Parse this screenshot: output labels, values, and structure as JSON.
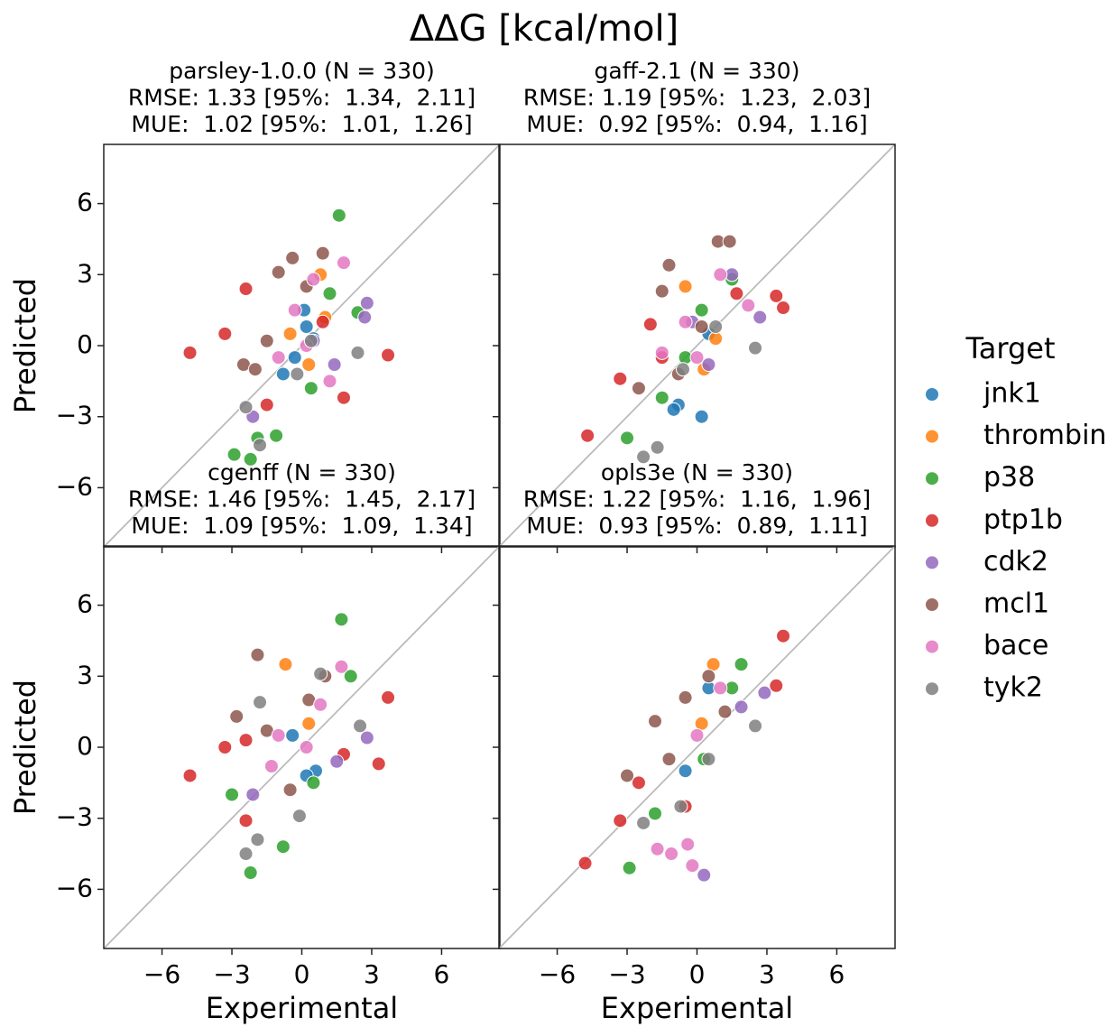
{
  "title": "ΔΔG [kcal/mol]",
  "legend_title": "Target",
  "chart_data": [
    {
      "type": "scatter",
      "title": [
        "parsley-1.0.0 (N = 330)",
        "RMSE: 1.33 [95%:  1.34,  2.11]",
        "MUE:  1.02 [95%:  1.01,  1.26]"
      ],
      "y_label": "Predicted",
      "xlim": [
        -8.5,
        8.5
      ],
      "ylim": [
        -8.5,
        8.5
      ],
      "xticks": [
        {
          "value": -6,
          "label": "−6"
        },
        {
          "value": -3,
          "label": "−3"
        },
        0,
        3,
        6
      ],
      "yticks": [
        {
          "value": -6,
          "label": "−6"
        },
        {
          "value": -3,
          "label": "−3"
        },
        0,
        3,
        6
      ],
      "series": [
        {
          "name": "jnk1",
          "color": "#1f77b4",
          "x": [
            0.1,
            -0.3,
            0.5,
            -0.8,
            0.2
          ],
          "values": [
            1.5,
            -0.5,
            0.3,
            -1.2,
            0.8
          ]
        },
        {
          "name": "thrombin",
          "color": "#ff7f0e",
          "x": [
            0.8,
            -0.5,
            0.3,
            1.0
          ],
          "values": [
            3.0,
            0.5,
            -0.8,
            1.2
          ]
        },
        {
          "name": "p38",
          "color": "#2ca02c",
          "x": [
            1.6,
            -2.9,
            -2.2,
            -1.9,
            1.2,
            0.4,
            -1.1,
            2.4
          ],
          "values": [
            5.5,
            -4.6,
            -4.8,
            -3.9,
            2.2,
            -1.8,
            -3.8,
            1.4
          ]
        },
        {
          "name": "ptp1b",
          "color": "#d62728",
          "x": [
            -4.8,
            -3.3,
            -2.4,
            3.7,
            1.8,
            -1.5,
            0.9
          ],
          "values": [
            -0.3,
            0.5,
            2.4,
            -0.4,
            -2.2,
            -2.5,
            1.0
          ]
        },
        {
          "name": "cdk2",
          "color": "#9467bd",
          "x": [
            2.8,
            2.7,
            -2.1,
            1.4,
            0.5
          ],
          "values": [
            1.8,
            1.2,
            -3.0,
            -0.8,
            0.2
          ]
        },
        {
          "name": "mcl1",
          "color": "#8c564b",
          "x": [
            -1.0,
            0.9,
            -0.4,
            -2.5,
            -1.5,
            0.2,
            -2.0
          ],
          "values": [
            3.1,
            3.9,
            3.7,
            -0.8,
            0.2,
            2.5,
            -1.0
          ]
        },
        {
          "name": "bace",
          "color": "#e377c2",
          "x": [
            1.8,
            0.5,
            -0.3,
            0.2,
            -1.0,
            1.2
          ],
          "values": [
            3.5,
            2.8,
            1.5,
            0.0,
            -0.5,
            -1.5
          ]
        },
        {
          "name": "tyk2",
          "color": "#7f7f7f",
          "x": [
            -2.4,
            -1.8,
            0.4,
            2.4,
            -0.2
          ],
          "values": [
            -2.6,
            -4.2,
            0.2,
            -0.3,
            -1.2
          ]
        }
      ]
    },
    {
      "type": "scatter",
      "title": [
        "gaff-2.1 (N = 330)",
        "RMSE: 1.19 [95%:  1.23,  2.03]",
        "MUE:  0.92 [95%:  0.94,  1.16]"
      ],
      "xlim": [
        -8.5,
        8.5
      ],
      "ylim": [
        -8.5,
        8.5
      ],
      "xticks": [
        {
          "value": -6,
          "label": "−6"
        },
        {
          "value": -3,
          "label": "−3"
        },
        0,
        3,
        6
      ],
      "yticks": [
        {
          "value": -6,
          "label": "−6"
        },
        {
          "value": -3,
          "label": "−3"
        },
        0,
        3,
        6
      ],
      "series": [
        {
          "name": "jnk1",
          "color": "#1f77b4",
          "x": [
            0.2,
            -0.8,
            -1.0,
            0.5
          ],
          "values": [
            -3.0,
            -2.5,
            -2.7,
            0.5
          ]
        },
        {
          "name": "thrombin",
          "color": "#ff7f0e",
          "x": [
            -0.5,
            0.3,
            0.8
          ],
          "values": [
            2.5,
            -1.0,
            0.3
          ]
        },
        {
          "name": "p38",
          "color": "#2ca02c",
          "x": [
            -3.0,
            -1.5,
            1.5,
            0.2,
            -0.5
          ],
          "values": [
            -3.9,
            -2.2,
            2.8,
            1.5,
            -0.5
          ]
        },
        {
          "name": "ptp1b",
          "color": "#d62728",
          "x": [
            -4.7,
            -3.3,
            3.4,
            3.7,
            1.7,
            -1.5,
            -2.0
          ],
          "values": [
            -3.8,
            -1.4,
            2.1,
            1.6,
            2.2,
            -0.5,
            0.9
          ]
        },
        {
          "name": "cdk2",
          "color": "#9467bd",
          "x": [
            2.7,
            1.5,
            -0.2,
            0.5
          ],
          "values": [
            1.2,
            3.0,
            1.0,
            -0.8
          ]
        },
        {
          "name": "mcl1",
          "color": "#8c564b",
          "x": [
            0.9,
            1.4,
            -1.2,
            -1.5,
            0.2,
            -2.5,
            -0.8
          ],
          "values": [
            4.4,
            4.4,
            3.4,
            2.3,
            0.8,
            -1.8,
            -1.2
          ]
        },
        {
          "name": "bace",
          "color": "#e377c2",
          "x": [
            2.2,
            1.0,
            -0.5,
            0.0,
            -1.5
          ],
          "values": [
            1.7,
            3.0,
            1.0,
            -0.5,
            -0.3
          ]
        },
        {
          "name": "tyk2",
          "color": "#7f7f7f",
          "x": [
            -2.3,
            -1.7,
            2.5,
            0.8,
            -0.6
          ],
          "values": [
            -4.7,
            -4.3,
            -0.1,
            0.8,
            -1.0
          ]
        }
      ]
    },
    {
      "type": "scatter",
      "title": [
        "cgenff (N = 330)",
        "RMSE: 1.46 [95%:  1.45,  2.17]",
        "MUE:  1.09 [95%:  1.09,  1.34]"
      ],
      "x_label": "Experimental",
      "y_label": "Predicted",
      "xlim": [
        -8.5,
        8.5
      ],
      "ylim": [
        -8.5,
        8.5
      ],
      "xticks": [
        {
          "value": -6,
          "label": "−6"
        },
        {
          "value": -3,
          "label": "−3"
        },
        0,
        3,
        6
      ],
      "yticks": [
        {
          "value": -6,
          "label": "−6"
        },
        {
          "value": -3,
          "label": "−3"
        },
        0,
        3,
        6
      ],
      "series": [
        {
          "name": "jnk1",
          "color": "#1f77b4",
          "x": [
            0.6,
            -0.4,
            0.2
          ],
          "values": [
            -1.0,
            0.5,
            -1.2
          ]
        },
        {
          "name": "thrombin",
          "color": "#ff7f0e",
          "x": [
            -0.7,
            0.3
          ],
          "values": [
            3.5,
            1.0
          ]
        },
        {
          "name": "p38",
          "color": "#2ca02c",
          "x": [
            1.7,
            -3.0,
            -2.2,
            -0.8,
            2.1,
            0.5
          ],
          "values": [
            5.4,
            -2.0,
            -5.3,
            -4.2,
            3.0,
            -1.5
          ]
        },
        {
          "name": "ptp1b",
          "color": "#d62728",
          "x": [
            -4.8,
            -3.3,
            -2.4,
            3.7,
            3.3,
            1.8,
            -2.4
          ],
          "values": [
            -1.2,
            0.0,
            0.3,
            2.1,
            -0.7,
            -0.3,
            -3.1
          ]
        },
        {
          "name": "cdk2",
          "color": "#9467bd",
          "x": [
            2.8,
            1.5,
            -2.1
          ],
          "values": [
            0.4,
            -0.6,
            -2.0
          ]
        },
        {
          "name": "mcl1",
          "color": "#8c564b",
          "x": [
            -1.9,
            -2.8,
            0.3,
            -0.5,
            1.0,
            -1.5
          ],
          "values": [
            3.9,
            1.3,
            2.0,
            -1.8,
            3.0,
            0.7
          ]
        },
        {
          "name": "bace",
          "color": "#e377c2",
          "x": [
            1.7,
            0.8,
            -1.0,
            0.2,
            -1.3
          ],
          "values": [
            3.4,
            1.8,
            0.5,
            0.0,
            -0.8
          ]
        },
        {
          "name": "tyk2",
          "color": "#7f7f7f",
          "x": [
            -2.4,
            -1.8,
            -0.1,
            2.5,
            0.8,
            -1.9
          ],
          "values": [
            -4.5,
            1.9,
            -2.9,
            0.9,
            3.1,
            -3.9
          ]
        }
      ]
    },
    {
      "type": "scatter",
      "title": [
        "opls3e (N = 330)",
        "RMSE: 1.22 [95%:  1.16,  1.96]",
        "MUE:  0.93 [95%:  0.89,  1.11]"
      ],
      "x_label": "Experimental",
      "xlim": [
        -8.5,
        8.5
      ],
      "ylim": [
        -8.5,
        8.5
      ],
      "xticks": [
        {
          "value": -6,
          "label": "−6"
        },
        {
          "value": -3,
          "label": "−3"
        },
        0,
        3,
        6
      ],
      "yticks": [
        {
          "value": -6,
          "label": "−6"
        },
        {
          "value": -3,
          "label": "−3"
        },
        0,
        3,
        6
      ],
      "series": [
        {
          "name": "jnk1",
          "color": "#1f77b4",
          "x": [
            0.5,
            -0.5
          ],
          "values": [
            2.5,
            -1.0
          ]
        },
        {
          "name": "thrombin",
          "color": "#ff7f0e",
          "x": [
            0.7,
            0.2
          ],
          "values": [
            3.5,
            1.0
          ]
        },
        {
          "name": "p38",
          "color": "#2ca02c",
          "x": [
            -2.9,
            1.9,
            1.5,
            -1.8,
            0.3
          ],
          "values": [
            -5.1,
            3.5,
            2.5,
            -2.8,
            -0.5
          ]
        },
        {
          "name": "ptp1b",
          "color": "#d62728",
          "x": [
            -4.8,
            -3.3,
            3.7,
            3.4,
            -2.5,
            -0.5
          ],
          "values": [
            -4.9,
            -3.1,
            4.7,
            2.6,
            -1.5,
            -2.5
          ]
        },
        {
          "name": "cdk2",
          "color": "#9467bd",
          "x": [
            0.3,
            2.9,
            1.9
          ],
          "values": [
            -5.4,
            2.3,
            1.7
          ]
        },
        {
          "name": "mcl1",
          "color": "#8c564b",
          "x": [
            -1.8,
            -3.0,
            0.5,
            -1.2,
            1.2,
            -0.5
          ],
          "values": [
            1.1,
            -1.2,
            3.0,
            -0.5,
            1.5,
            2.1
          ]
        },
        {
          "name": "bace",
          "color": "#e377c2",
          "x": [
            -1.7,
            -1.1,
            -0.4,
            -0.2,
            1.0,
            0.0
          ],
          "values": [
            -4.3,
            -4.5,
            -4.1,
            -5.0,
            2.5,
            0.5
          ]
        },
        {
          "name": "tyk2",
          "color": "#7f7f7f",
          "x": [
            -2.3,
            2.5,
            -0.7,
            0.5
          ],
          "values": [
            -3.2,
            0.9,
            -2.5,
            -0.5
          ]
        }
      ]
    }
  ]
}
